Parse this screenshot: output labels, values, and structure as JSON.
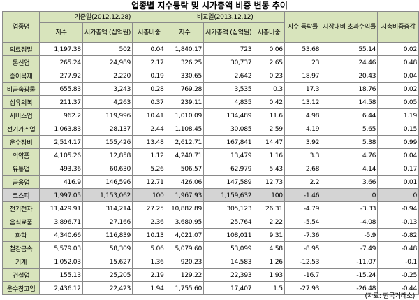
{
  "title": "업종별 지수등락 및 시가총액 비중 변동 추이",
  "headers": {
    "sector": "업종명",
    "base_period": "기준일(2012.12.28)",
    "compare_period": "비교일(2013.12.12)",
    "index": "지수",
    "market_cap": "시가총액 (십억원)",
    "cap_weight": "시총비중",
    "index_change": "지수 등락률",
    "excess_return": "시장대비 초과수익률",
    "weight_change": "시총비중증감"
  },
  "rows": [
    [
      "의료정밀",
      "1,197.38",
      "502",
      "0.04",
      "1,840.17",
      "723",
      "0.06",
      "53.68",
      "55.14",
      "0.02"
    ],
    [
      "통신업",
      "265.24",
      "24,989",
      "2.17",
      "326.25",
      "30,737",
      "2.65",
      "23",
      "24.46",
      "0.48"
    ],
    [
      "종이목재",
      "277.92",
      "2,220",
      "0.19",
      "330.65",
      "2,642",
      "0.23",
      "18.97",
      "20.43",
      "0.04"
    ],
    [
      "비금속광물",
      "655.83",
      "3,243",
      "0.28",
      "769.28",
      "3,535",
      "0.3",
      "17.3",
      "18.76",
      "0.02"
    ],
    [
      "섬유의복",
      "211.37",
      "4,263",
      "0.37",
      "239.11",
      "4,835",
      "0.42",
      "13.12",
      "14.58",
      "0.05"
    ],
    [
      "서비스업",
      "962.2",
      "119,996",
      "10.41",
      "1,010.09",
      "134,489",
      "11.6",
      "4.98",
      "6.44",
      "1.19"
    ],
    [
      "전기가스업",
      "1,063.83",
      "28,137",
      "2.44",
      "1,108.45",
      "30,085",
      "2.59",
      "4.19",
      "5.65",
      "0.15"
    ],
    [
      "운수장비",
      "2,514.17",
      "155,426",
      "13.48",
      "2,612.71",
      "167,841",
      "14.47",
      "3.92",
      "5.38",
      "0.99"
    ],
    [
      "의약품",
      "4,105.26",
      "12,858",
      "1.12",
      "4,240.71",
      "13,479",
      "1.16",
      "3.3",
      "4.76",
      "0.04"
    ],
    [
      "유통업",
      "493.36",
      "60,630",
      "5.26",
      "506.57",
      "62,979",
      "5.43",
      "2.68",
      "4.14",
      "0.17"
    ],
    [
      "금융업",
      "416.9",
      "146,596",
      "12.71",
      "426.06",
      "147,589",
      "12.73",
      "2.2",
      "3.66",
      "0.01"
    ],
    [
      "코스피",
      "1,997.05",
      "1,153,062",
      "100",
      "1,967.93",
      "1,159,632",
      "100",
      "-1.46",
      "0",
      "0"
    ],
    [
      "전기전자",
      "11,429.91",
      "314,214",
      "27.25",
      "10,882.89",
      "305,123",
      "26.31",
      "-4.79",
      "-3.33",
      "-0.94"
    ],
    [
      "음식료품",
      "3,896.71",
      "27,166",
      "2.36",
      "3,680.95",
      "25,764",
      "2.22",
      "-5.54",
      "-4.08",
      "-0.13"
    ],
    [
      "화학",
      "4,340.66",
      "116,839",
      "10.13",
      "4,021.07",
      "108,011",
      "9.31",
      "-7.36",
      "-5.9",
      "-0.82"
    ],
    [
      "철강금속",
      "5,579.03",
      "58,309",
      "5.06",
      "5,079.60",
      "53,099",
      "4.58",
      "-8.95",
      "-7.49",
      "-0.48"
    ],
    [
      "기계",
      "1,052.03",
      "15,627",
      "1.36",
      "920.23",
      "14,583",
      "1.26",
      "-12.53",
      "-11.07",
      "-0.1"
    ],
    [
      "건설업",
      "155.13",
      "25,205",
      "2.19",
      "129.22",
      "22,393",
      "1.93",
      "-16.7",
      "-15.24",
      "-0.25"
    ],
    [
      "운수창고업",
      "2,436.12",
      "22,423",
      "1.94",
      "1,755.60",
      "17,407",
      "1.5",
      "-27.93",
      "-26.48",
      "-0.44"
    ]
  ],
  "highlight_row": "코스피",
  "source": "(자료: 한국거래소)",
  "colors": {
    "header_bg": "#d8e4bc",
    "highlight_bg": "#d4d4d4",
    "border": "#8a8a8a"
  }
}
